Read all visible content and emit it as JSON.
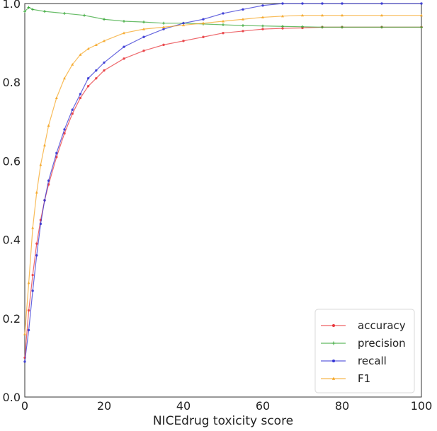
{
  "chart_data": {
    "type": "line",
    "title": "",
    "xlabel": "NICEdrug toxicity score",
    "ylabel": "",
    "xlim": [
      0,
      100
    ],
    "ylim": [
      0.0,
      1.0
    ],
    "xticks": [
      "0",
      "20",
      "40",
      "60",
      "80",
      "100"
    ],
    "yticks": [
      "0.0",
      "0.2",
      "0.4",
      "0.6",
      "0.8",
      "1.0"
    ],
    "grid": false,
    "legend_position": "lower-right",
    "series": [
      {
        "name": "accuracy",
        "color": "#e8383d",
        "marker": "circle",
        "x": [
          0,
          1,
          2,
          3,
          4,
          5,
          6,
          8,
          10,
          12,
          14,
          16,
          18,
          20,
          25,
          30,
          35,
          40,
          45,
          50,
          55,
          60,
          65,
          70,
          75,
          80,
          90,
          100
        ],
        "y": [
          0.1,
          0.22,
          0.31,
          0.39,
          0.45,
          0.5,
          0.54,
          0.61,
          0.67,
          0.72,
          0.76,
          0.79,
          0.81,
          0.83,
          0.86,
          0.88,
          0.895,
          0.905,
          0.915,
          0.925,
          0.93,
          0.935,
          0.937,
          0.938,
          0.94,
          0.94,
          0.94,
          0.94
        ]
      },
      {
        "name": "precision",
        "color": "#3aa83a",
        "marker": "plus",
        "x": [
          0,
          1,
          2,
          5,
          10,
          15,
          20,
          25,
          30,
          35,
          40,
          45,
          50,
          55,
          60,
          65,
          70,
          75,
          80,
          90,
          100
        ],
        "y": [
          0.98,
          0.99,
          0.985,
          0.98,
          0.975,
          0.97,
          0.96,
          0.955,
          0.953,
          0.95,
          0.95,
          0.948,
          0.946,
          0.944,
          0.943,
          0.942,
          0.941,
          0.94,
          0.94,
          0.94,
          0.94
        ]
      },
      {
        "name": "recall",
        "color": "#3434d4",
        "marker": "circle",
        "x": [
          0,
          1,
          2,
          3,
          4,
          5,
          6,
          8,
          10,
          12,
          14,
          16,
          18,
          20,
          25,
          30,
          35,
          40,
          45,
          50,
          55,
          60,
          65,
          70,
          75,
          80,
          90,
          100
        ],
        "y": [
          0.09,
          0.17,
          0.27,
          0.36,
          0.44,
          0.5,
          0.55,
          0.62,
          0.68,
          0.73,
          0.77,
          0.81,
          0.83,
          0.85,
          0.89,
          0.915,
          0.935,
          0.95,
          0.96,
          0.975,
          0.985,
          0.995,
          1.0,
          1.0,
          1.0,
          1.0,
          1.0,
          1.0
        ]
      },
      {
        "name": "F1",
        "color": "#f5a623",
        "marker": "triangle",
        "x": [
          0,
          1,
          2,
          3,
          4,
          5,
          6,
          8,
          10,
          12,
          14,
          16,
          18,
          20,
          25,
          30,
          35,
          40,
          45,
          50,
          55,
          60,
          65,
          70,
          75,
          80,
          90,
          100
        ],
        "y": [
          0.16,
          0.29,
          0.43,
          0.52,
          0.59,
          0.64,
          0.69,
          0.76,
          0.81,
          0.845,
          0.87,
          0.885,
          0.895,
          0.905,
          0.925,
          0.935,
          0.94,
          0.945,
          0.95,
          0.955,
          0.96,
          0.965,
          0.968,
          0.97,
          0.97,
          0.97,
          0.97,
          0.97
        ]
      }
    ]
  }
}
